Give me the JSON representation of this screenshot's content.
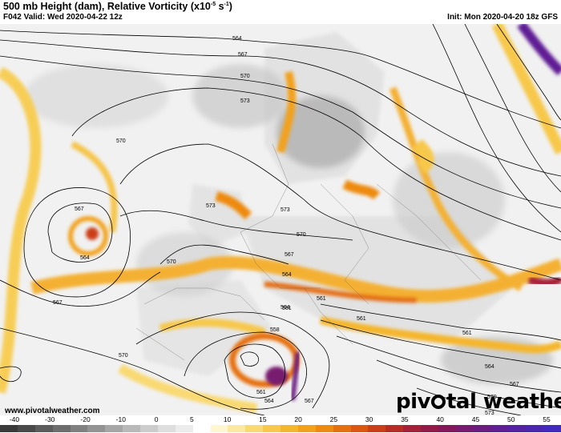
{
  "header": {
    "title_main": "500 mb Height (dam), Relative Vorticity (x10",
    "title_exp": "-5",
    "title_unit": " s",
    "title_exp2": "-1",
    "title_close": ")",
    "valid": "F042 Valid: Wed 2020-04-22 12z",
    "init": "Init: Mon 2020-04-20 18z GFS"
  },
  "map": {
    "contour_labels": [
      "564",
      "567",
      "570",
      "573",
      "570",
      "567",
      "564",
      "573",
      "570",
      "573",
      "567",
      "564",
      "567",
      "570",
      "564",
      "561",
      "561",
      "558",
      "561",
      "564",
      "567",
      "570",
      "561",
      "561",
      "564",
      "567",
      "570",
      "573"
    ]
  },
  "footer": {
    "url": "www.pivotalweather.com",
    "brand_left": "piv",
    "brand_right": "tal weather"
  },
  "colorbar": {
    "ticks": [
      "-40",
      "-30",
      "-20",
      "-10",
      "0",
      "5",
      "10",
      "15",
      "20",
      "25",
      "30",
      "35",
      "40",
      "45",
      "50",
      "55"
    ],
    "colors": [
      "#3a3a3a",
      "#4a4a4a",
      "#5c5c5c",
      "#6e6e6e",
      "#808080",
      "#939393",
      "#a6a6a6",
      "#b9b9b9",
      "#cccccc",
      "#dedede",
      "#ececec",
      "#ffffff",
      "#fdf6d0",
      "#fbe9a0",
      "#f9d971",
      "#f7c84a",
      "#f5b62c",
      "#f2a11a",
      "#ee8a10",
      "#e6700e",
      "#dc560f",
      "#cc3e16",
      "#b92c26",
      "#a62037",
      "#941a4a",
      "#85175c",
      "#781a70",
      "#6b1c83",
      "#601f94",
      "#5522a3",
      "#4b26b2",
      "#4229bf"
    ]
  }
}
